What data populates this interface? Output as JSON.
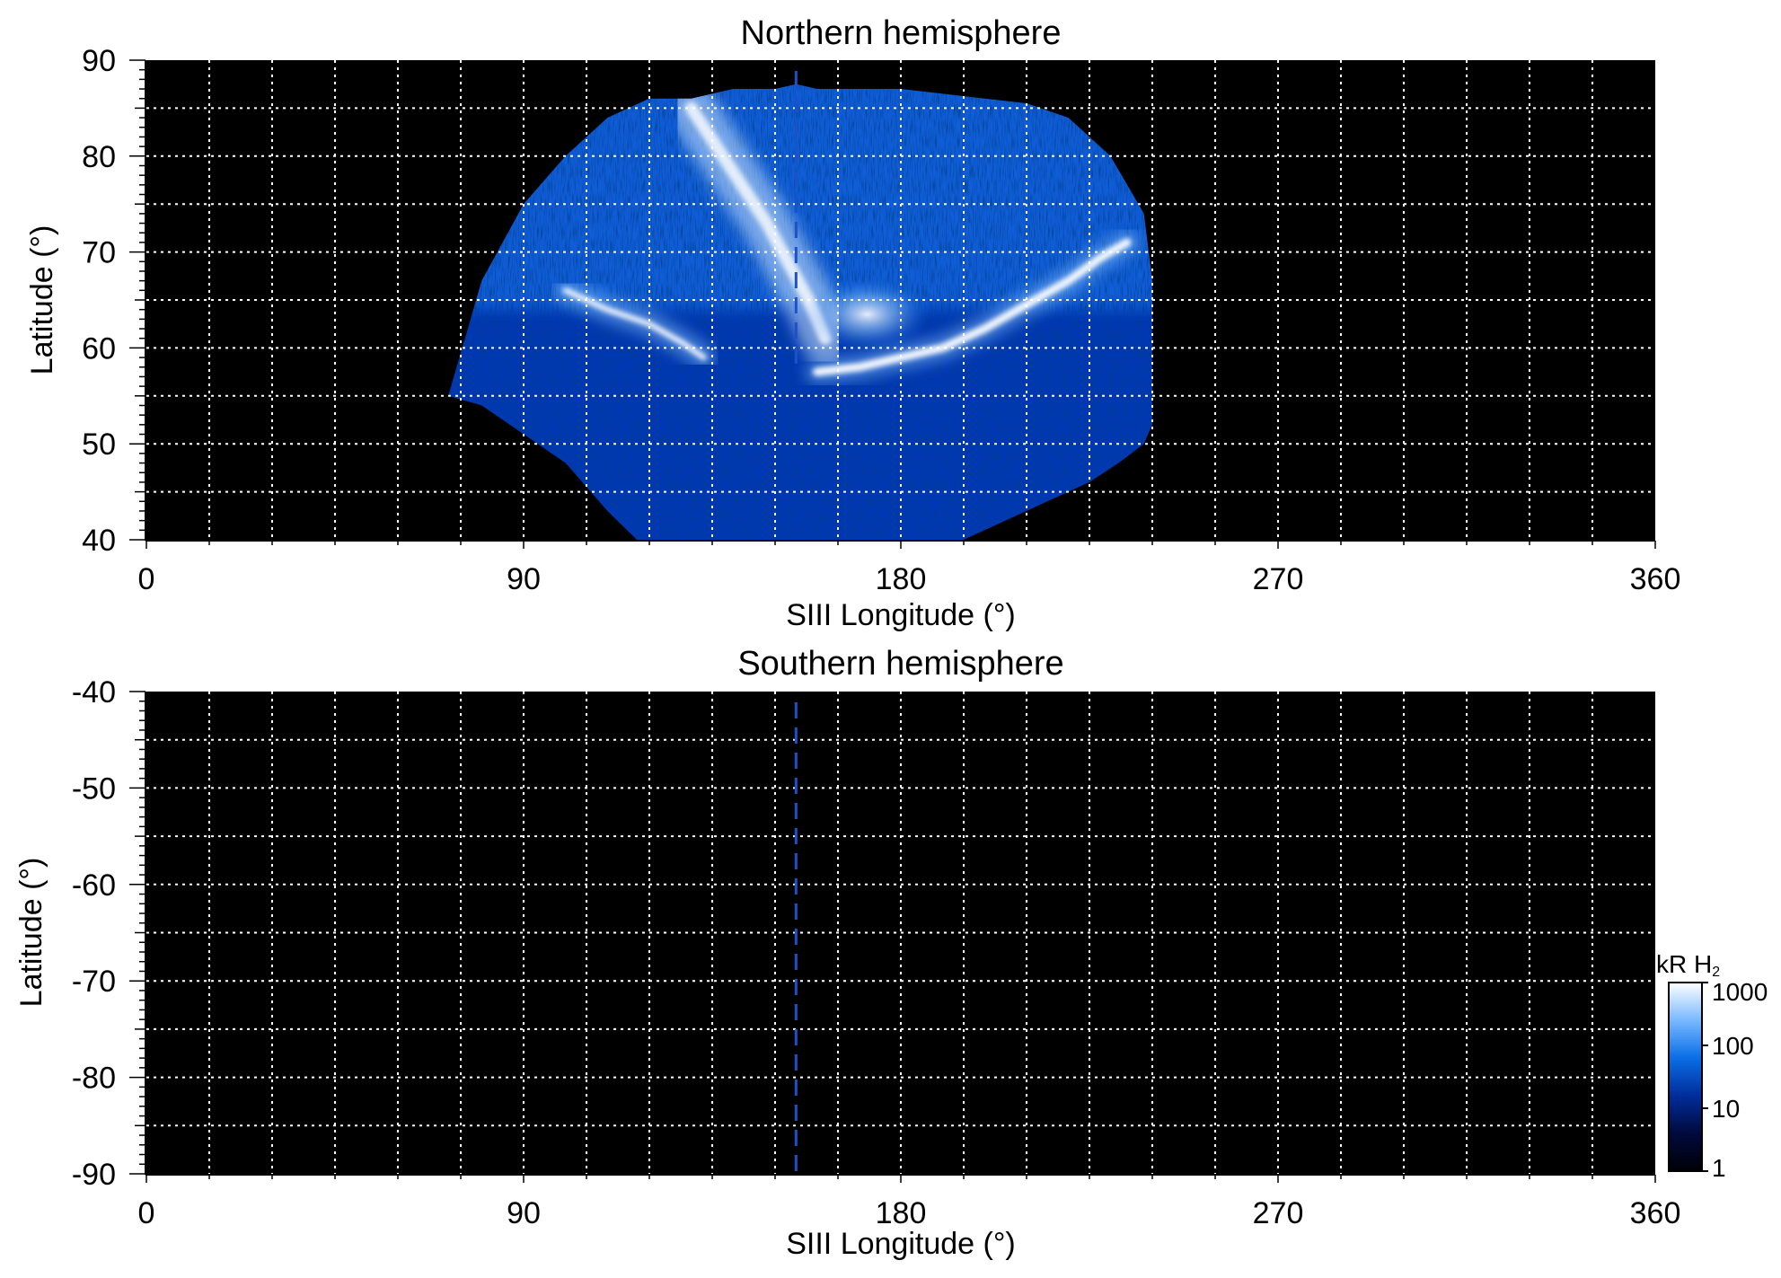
{
  "chart_data": [
    {
      "type": "heatmap",
      "title": "Northern hemisphere",
      "xlabel": "SIII Longitude (°)",
      "ylabel": "Latitude (°)",
      "xlim": [
        0,
        360
      ],
      "ylim": [
        40,
        90
      ],
      "xticks": [
        "0",
        "90",
        "180",
        "270",
        "360"
      ],
      "yticks": [
        "40",
        "50",
        "60",
        "70",
        "80",
        "90"
      ],
      "grid": true,
      "reference_longitude": 155,
      "coverage_boundary": {
        "lon": [
          72,
          80,
          90,
          100,
          110,
          120,
          130,
          140,
          150,
          155,
          160,
          170,
          180,
          190,
          200,
          210,
          220,
          230,
          238,
          240,
          240,
          238,
          232,
          225,
          215,
          205,
          195,
          185,
          175,
          165,
          155,
          145,
          135,
          125,
          117,
          110,
          100,
          90,
          80,
          72
        ],
        "lat": [
          55,
          67,
          75,
          80,
          84,
          86,
          86,
          87,
          87,
          87.5,
          87,
          87,
          87,
          86.5,
          86,
          85.5,
          84,
          80,
          74,
          67,
          52,
          50,
          48,
          46,
          44,
          42,
          40,
          40,
          40,
          40,
          40,
          40,
          40,
          40,
          40,
          43,
          48,
          51,
          54,
          55
        ]
      },
      "main_oval": {
        "lon": [
          100,
          110,
          120,
          128,
          133
        ],
        "lat": [
          66,
          64,
          62.5,
          60.5,
          59
        ]
      },
      "main_oval_east": {
        "lon": [
          160,
          170,
          180,
          190,
          200,
          210,
          220,
          228,
          234
        ],
        "lat": [
          57.5,
          58,
          59,
          60,
          62,
          64.5,
          67,
          69.5,
          71
        ]
      },
      "bright_arc": {
        "lon": [
          130,
          136,
          142,
          148,
          153,
          158,
          162
        ],
        "lat": [
          85,
          81,
          77,
          73,
          69,
          65,
          61
        ]
      },
      "intensity_units": "kR"
    },
    {
      "type": "heatmap",
      "title": "Southern hemisphere",
      "xlabel": "SIII Longitude (°)",
      "ylabel": "Latitude (°)",
      "xlim": [
        0,
        360
      ],
      "ylim": [
        -90,
        -40
      ],
      "xticks": [
        "0",
        "90",
        "180",
        "270",
        "360"
      ],
      "yticks": [
        "-40",
        "-50",
        "-60",
        "-70",
        "-80",
        "-90"
      ],
      "grid": true,
      "reference_longitude": 155,
      "coverage": "none"
    }
  ],
  "colorbar": {
    "label_main": "kR H",
    "label_sub": "2",
    "scale": "log",
    "range": [
      1,
      1000
    ],
    "ticks": [
      "1000",
      "100",
      "10",
      "1"
    ],
    "colors": [
      "#000005",
      "#000a3c",
      "#002d9b",
      "#0a6ee6",
      "#78b9ff",
      "#ffffff"
    ]
  },
  "colors": {
    "background": "#000000",
    "grid": "#ffffff",
    "reference_line": "#1e50c8",
    "emission_low": "#0037b4",
    "emission_mid": "#1e7df5",
    "emission_high": "#ffffff"
  }
}
